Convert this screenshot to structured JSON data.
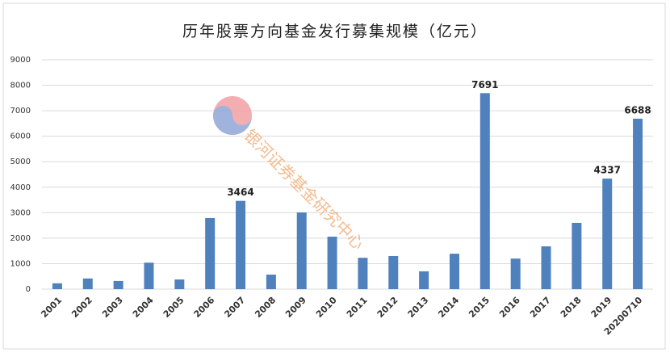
{
  "chart_data": {
    "type": "bar",
    "title": "历年股票方向基金发行募集规模（亿元）",
    "watermark": "银河证券基金研究中心",
    "categories": [
      "2001",
      "2002",
      "2003",
      "2004",
      "2005",
      "2006",
      "2007",
      "2008",
      "2009",
      "2010",
      "2011",
      "2012",
      "2013",
      "2014",
      "2015",
      "2016",
      "2017",
      "2018",
      "2019",
      "20200710"
    ],
    "values": [
      230,
      420,
      320,
      1040,
      380,
      2790,
      3464,
      570,
      3010,
      2060,
      1230,
      1300,
      700,
      1390,
      7691,
      1200,
      1680,
      2600,
      4337,
      6688
    ],
    "value_labels": [
      null,
      null,
      null,
      null,
      null,
      null,
      "3464",
      null,
      null,
      null,
      null,
      null,
      null,
      null,
      "7691",
      null,
      null,
      null,
      "4337",
      "6688"
    ],
    "color": "#4f81bd",
    "ylim": [
      0,
      9000
    ],
    "yticks": [
      0,
      1000,
      2000,
      3000,
      4000,
      5000,
      6000,
      7000,
      8000,
      9000
    ],
    "grid": true
  }
}
